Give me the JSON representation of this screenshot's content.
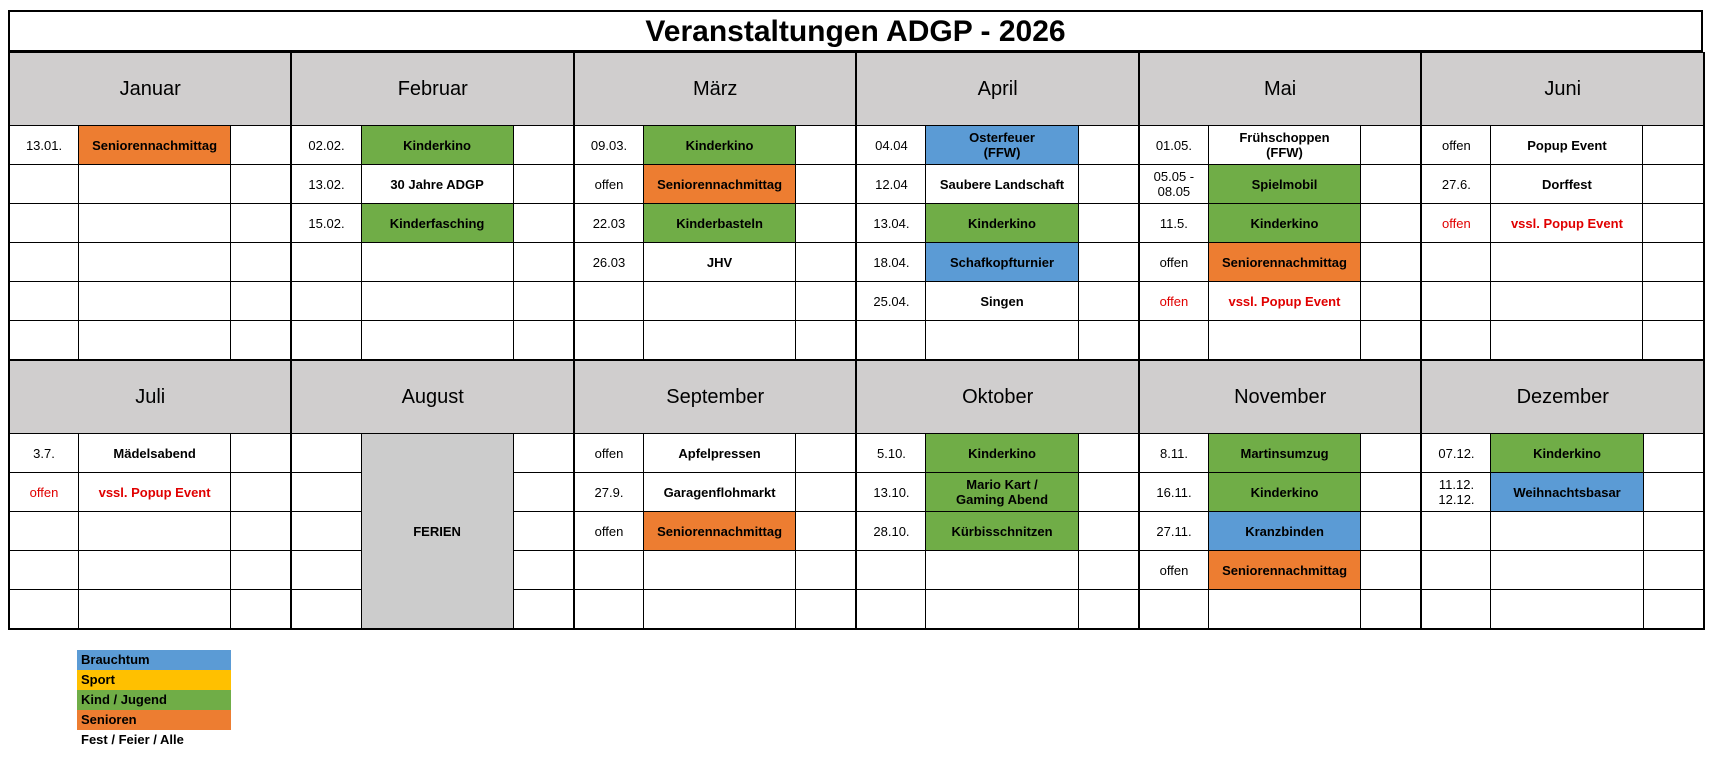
{
  "title": "Veranstaltungen ADGP - 2026",
  "colors": {
    "brauchtum": "#5b9bd5",
    "sport": "#ffc000",
    "kind": "#70ad47",
    "senioren": "#ed7d31",
    "header": "#d0cece",
    "tentative_text": "#e00000"
  },
  "months_top": [
    {
      "name": "Januar",
      "events": [
        {
          "date": "13.01.",
          "event": "Seniorennachmittag",
          "cat": "senioren"
        },
        {},
        {},
        {},
        {},
        {}
      ]
    },
    {
      "name": "Februar",
      "events": [
        {
          "date": "02.02.",
          "event": "Kinderkino",
          "cat": "kind"
        },
        {
          "date": "13.02.",
          "event": "30 Jahre ADGP",
          "cat": "fest"
        },
        {
          "date": "15.02.",
          "event": "Kinderfasching",
          "cat": "kind"
        },
        {},
        {},
        {}
      ]
    },
    {
      "name": "März",
      "events": [
        {
          "date": "09.03.",
          "event": "Kinderkino",
          "cat": "kind"
        },
        {
          "date": "offen",
          "event": "Seniorennachmittag",
          "cat": "senioren"
        },
        {
          "date": "22.03",
          "event": "Kinderbasteln",
          "cat": "kind"
        },
        {
          "date": "26.03",
          "event": "JHV",
          "cat": "fest"
        },
        {},
        {}
      ]
    },
    {
      "name": "April",
      "events": [
        {
          "date": "04.04",
          "event": "Osterfeuer\n(FFW)",
          "cat": "brauchtum"
        },
        {
          "date": "12.04",
          "event": "Saubere Landschaft",
          "cat": "fest"
        },
        {
          "date": "13.04.",
          "event": "Kinderkino",
          "cat": "kind"
        },
        {
          "date": "18.04.",
          "event": "Schafkopfturnier",
          "cat": "brauchtum"
        },
        {
          "date": "25.04.",
          "event": "Singen",
          "cat": "fest"
        },
        {}
      ]
    },
    {
      "name": "Mai",
      "events": [
        {
          "date": "01.05.",
          "event": "Frühschoppen\n(FFW)",
          "cat": "fest"
        },
        {
          "date": "05.05 -\n08.05",
          "event": "Spielmobil",
          "cat": "kind"
        },
        {
          "date": "11.5.",
          "event": "Kinderkino",
          "cat": "kind"
        },
        {
          "date": "offen",
          "event": "Seniorennachmittag",
          "cat": "senioren"
        },
        {
          "date": "offen",
          "event": "vssl. Popup Event",
          "cat": "fest",
          "tentative": true
        },
        {}
      ]
    },
    {
      "name": "Juni",
      "events": [
        {
          "date": "offen",
          "event": "Popup Event",
          "cat": "fest"
        },
        {
          "date": "27.6.",
          "event": "Dorffest",
          "cat": "fest"
        },
        {
          "date": "offen",
          "event": "vssl. Popup Event",
          "cat": "fest",
          "tentative": true
        },
        {},
        {},
        {}
      ]
    }
  ],
  "months_bottom": [
    {
      "name": "Juli",
      "events": [
        {
          "date": "3.7.",
          "event": "Mädelsabend",
          "cat": "fest"
        },
        {
          "date": "offen",
          "event": "vssl. Popup Event",
          "cat": "fest",
          "tentative": true
        },
        {},
        {},
        {}
      ]
    },
    {
      "name": "August",
      "ferien": "FERIEN",
      "events": [
        {},
        {},
        {},
        {},
        {}
      ]
    },
    {
      "name": "September",
      "events": [
        {
          "date": "offen",
          "event": "Apfelpressen",
          "cat": "fest"
        },
        {
          "date": "27.9.",
          "event": "Garagenflohmarkt",
          "cat": "fest"
        },
        {
          "date": "offen",
          "event": "Seniorennachmittag",
          "cat": "senioren"
        },
        {},
        {}
      ]
    },
    {
      "name": "Oktober",
      "events": [
        {
          "date": "5.10.",
          "event": "Kinderkino",
          "cat": "kind"
        },
        {
          "date": "13.10.",
          "event": "Mario Kart /\nGaming Abend",
          "cat": "kind"
        },
        {
          "date": "28.10.",
          "event": "Kürbisschnitzen",
          "cat": "kind"
        },
        {},
        {}
      ]
    },
    {
      "name": "November",
      "events": [
        {
          "date": "8.11.",
          "event": "Martinsumzug",
          "cat": "kind"
        },
        {
          "date": "16.11.",
          "event": "Kinderkino",
          "cat": "kind"
        },
        {
          "date": "27.11.",
          "event": "Kranzbinden",
          "cat": "brauchtum"
        },
        {
          "date": "offen",
          "event": "Seniorennachmittag",
          "cat": "senioren"
        },
        {}
      ]
    },
    {
      "name": "Dezember",
      "events": [
        {
          "date": "07.12.",
          "event": "Kinderkino",
          "cat": "kind"
        },
        {
          "date": "11.12.\n12.12.",
          "event": "Weihnachtsbasar",
          "cat": "brauchtum"
        },
        {},
        {},
        {}
      ]
    }
  ],
  "legend": [
    {
      "label": "Brauchtum",
      "cat": "brauchtum"
    },
    {
      "label": "Sport",
      "cat": "sport"
    },
    {
      "label": "Kind / Jugend",
      "cat": "kind"
    },
    {
      "label": "Senioren",
      "cat": "senioren"
    },
    {
      "label": "Fest / Feier / Alle",
      "cat": "fest"
    }
  ]
}
